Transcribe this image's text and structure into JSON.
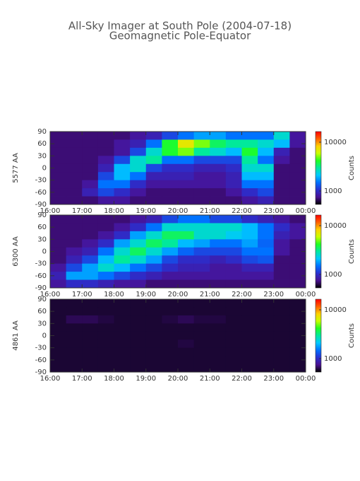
{
  "chart_data": [
    {
      "type": "heatmap",
      "title": "All-Sky Imager at South Pole (2004-07-18)",
      "subtitle": "Geomagnetic Pole-Equator",
      "ylabel": "5577 AA",
      "zlabel": "Counts",
      "zscale": "log",
      "zlim": [
        530,
        16500
      ],
      "zticks": [
        1000,
        10000
      ],
      "colormap": [
        "#000000",
        "#4a1090",
        "#2a30d0",
        "#0070ff",
        "#00c8ff",
        "#00e8a0",
        "#20ff20",
        "#c8ff00",
        "#ffd000",
        "#ff6000",
        "#ff0000"
      ],
      "xlim": [
        16,
        24
      ],
      "xticks": [
        {
          "value": 16,
          "label": "16:00"
        },
        {
          "value": 17,
          "label": "17:00"
        },
        {
          "value": 18,
          "label": "18:00"
        },
        {
          "value": 19,
          "label": "19:00"
        },
        {
          "value": 20,
          "label": "20:00"
        },
        {
          "value": 21,
          "label": "21:00"
        },
        {
          "value": 22,
          "label": "22:00"
        },
        {
          "value": 23,
          "label": "23:00"
        },
        {
          "value": 24,
          "label": "00:00"
        }
      ],
      "ylim": [
        -90,
        90
      ],
      "yticks": [
        -90,
        -60,
        -30,
        0,
        30,
        60,
        90
      ],
      "x": [
        16.25,
        16.75,
        17.25,
        17.75,
        18.25,
        18.75,
        19.25,
        19.75,
        20.25,
        20.75,
        21.25,
        21.75,
        22.25,
        22.75,
        23.25,
        23.75
      ],
      "y": [
        80,
        60,
        40,
        20,
        0,
        -20,
        -40,
        -60,
        -80
      ],
      "values": [
        [
          700,
          700,
          700,
          700,
          700,
          800,
          900,
          1200,
          1500,
          1800,
          1800,
          1500,
          1500,
          1500,
          2500,
          800
        ],
        [
          700,
          700,
          700,
          700,
          800,
          900,
          1500,
          4000,
          7000,
          5000,
          3500,
          3000,
          3000,
          2500,
          2000,
          800
        ],
        [
          700,
          700,
          700,
          700,
          800,
          1200,
          2500,
          4000,
          5000,
          3000,
          2500,
          2000,
          4000,
          2000,
          900,
          700
        ],
        [
          700,
          700,
          700,
          800,
          1200,
          2500,
          3000,
          1500,
          1500,
          1200,
          1200,
          1200,
          3000,
          1500,
          800,
          700
        ],
        [
          700,
          700,
          700,
          900,
          2000,
          2500,
          1200,
          1000,
          1000,
          900,
          900,
          1000,
          2500,
          2500,
          700,
          700
        ],
        [
          700,
          700,
          700,
          1200,
          2000,
          1500,
          900,
          900,
          900,
          800,
          800,
          900,
          2000,
          2000,
          700,
          700
        ],
        [
          700,
          700,
          800,
          1500,
          1500,
          1000,
          800,
          800,
          800,
          800,
          800,
          900,
          1500,
          1500,
          700,
          700
        ],
        [
          700,
          700,
          900,
          1200,
          1000,
          800,
          700,
          700,
          700,
          700,
          700,
          800,
          1000,
          1200,
          700,
          700
        ],
        [
          700,
          700,
          700,
          800,
          800,
          700,
          700,
          700,
          700,
          700,
          700,
          700,
          800,
          900,
          700,
          700
        ]
      ]
    },
    {
      "type": "heatmap",
      "ylabel": "6300 AA",
      "zlabel": "Counts",
      "zscale": "log",
      "zlim": [
        530,
        16500
      ],
      "zticks": [
        1000,
        10000
      ],
      "colormap": [
        "#000000",
        "#4a1090",
        "#2a30d0",
        "#0070ff",
        "#00c8ff",
        "#00e8a0",
        "#20ff20",
        "#c8ff00",
        "#ffd000",
        "#ff6000",
        "#ff0000"
      ],
      "xlim": [
        16,
        24
      ],
      "xticks": [
        {
          "value": 16,
          "label": "16:00"
        },
        {
          "value": 17,
          "label": "17:00"
        },
        {
          "value": 18,
          "label": "18:00"
        },
        {
          "value": 19,
          "label": "19:00"
        },
        {
          "value": 20,
          "label": "20:00"
        },
        {
          "value": 21,
          "label": "21:00"
        },
        {
          "value": 22,
          "label": "22:00"
        },
        {
          "value": 23,
          "label": "23:00"
        },
        {
          "value": 24,
          "label": "00:00"
        }
      ],
      "ylim": [
        -90,
        90
      ],
      "yticks": [
        -90,
        -60,
        -30,
        0,
        30,
        60,
        90
      ],
      "x": [
        16.25,
        16.75,
        17.25,
        17.75,
        18.25,
        18.75,
        19.25,
        19.75,
        20.25,
        20.75,
        21.25,
        21.75,
        22.25,
        22.75,
        23.25,
        23.75
      ],
      "y": [
        80,
        60,
        40,
        20,
        0,
        -20,
        -40,
        -60,
        -80
      ],
      "values": [
        [
          700,
          700,
          700,
          700,
          700,
          800,
          900,
          1200,
          1500,
          1500,
          1200,
          1200,
          1000,
          900,
          800,
          700
        ],
        [
          700,
          700,
          700,
          700,
          800,
          1000,
          1500,
          2500,
          2500,
          2500,
          2500,
          2500,
          2000,
          1500,
          1000,
          800
        ],
        [
          700,
          700,
          700,
          800,
          1000,
          1800,
          2500,
          3500,
          3500,
          2500,
          2500,
          2200,
          2000,
          1500,
          900,
          800
        ],
        [
          700,
          700,
          800,
          1000,
          1800,
          2500,
          3500,
          3000,
          2000,
          1800,
          1500,
          1500,
          1800,
          1400,
          800,
          700
        ],
        [
          700,
          800,
          900,
          1500,
          2500,
          3500,
          2500,
          1800,
          1400,
          1200,
          1200,
          1200,
          1500,
          1500,
          800,
          700
        ],
        [
          700,
          900,
          1200,
          2000,
          3000,
          2500,
          1800,
          1200,
          1000,
          1000,
          900,
          1000,
          1200,
          1300,
          700,
          700
        ],
        [
          800,
          1200,
          1800,
          2500,
          2000,
          1500,
          1200,
          1000,
          900,
          900,
          800,
          800,
          900,
          900,
          700,
          700
        ],
        [
          900,
          1800,
          1800,
          1500,
          1200,
          1000,
          900,
          800,
          800,
          800,
          800,
          800,
          800,
          800,
          700,
          700
        ],
        [
          800,
          1000,
          1000,
          900,
          800,
          800,
          700,
          700,
          700,
          700,
          700,
          700,
          700,
          700,
          700,
          700
        ]
      ]
    },
    {
      "type": "heatmap",
      "ylabel": "4861 AA",
      "zlabel": "Counts",
      "zscale": "log",
      "zlim": [
        530,
        16500
      ],
      "zticks": [
        1000,
        10000
      ],
      "colormap": [
        "#000000",
        "#4a1090",
        "#2a30d0",
        "#0070ff",
        "#00c8ff",
        "#00e8a0",
        "#20ff20",
        "#c8ff00",
        "#ffd000",
        "#ff6000",
        "#ff0000"
      ],
      "xlim": [
        16,
        24
      ],
      "xticks": [
        {
          "value": 16,
          "label": "16:00"
        },
        {
          "value": 17,
          "label": "17:00"
        },
        {
          "value": 18,
          "label": "18:00"
        },
        {
          "value": 19,
          "label": "19:00"
        },
        {
          "value": 20,
          "label": "20:00"
        },
        {
          "value": 21,
          "label": "21:00"
        },
        {
          "value": 22,
          "label": "22:00"
        },
        {
          "value": 23,
          "label": "23:00"
        },
        {
          "value": 24,
          "label": "00:00"
        }
      ],
      "ylim": [
        -90,
        90
      ],
      "yticks": [
        -90,
        -60,
        -30,
        0,
        30,
        60,
        90
      ],
      "x": [
        16.25,
        16.75,
        17.25,
        17.75,
        18.25,
        18.75,
        19.25,
        19.75,
        20.25,
        20.75,
        21.25,
        21.75,
        22.25,
        22.75,
        23.25,
        23.75
      ],
      "y": [
        80,
        60,
        40,
        20,
        0,
        -20,
        -40,
        -60,
        -80
      ],
      "values": [
        [
          600,
          600,
          600,
          600,
          600,
          600,
          600,
          600,
          600,
          600,
          600,
          600,
          600,
          600,
          600,
          600
        ],
        [
          600,
          600,
          600,
          600,
          600,
          600,
          600,
          600,
          600,
          600,
          600,
          600,
          600,
          600,
          600,
          600
        ],
        [
          600,
          650,
          650,
          620,
          600,
          600,
          600,
          620,
          650,
          620,
          620,
          600,
          600,
          600,
          600,
          600
        ],
        [
          600,
          600,
          600,
          600,
          600,
          600,
          600,
          600,
          600,
          600,
          600,
          600,
          600,
          600,
          600,
          600
        ],
        [
          600,
          600,
          600,
          600,
          600,
          600,
          600,
          600,
          600,
          600,
          600,
          600,
          600,
          600,
          600,
          600
        ],
        [
          600,
          600,
          600,
          600,
          600,
          600,
          600,
          600,
          620,
          600,
          600,
          600,
          600,
          600,
          600,
          600
        ],
        [
          600,
          600,
          600,
          600,
          600,
          600,
          600,
          600,
          600,
          600,
          600,
          600,
          600,
          600,
          600,
          600
        ],
        [
          600,
          600,
          600,
          600,
          600,
          600,
          600,
          600,
          600,
          600,
          600,
          600,
          600,
          600,
          600,
          600
        ],
        [
          600,
          600,
          600,
          600,
          600,
          600,
          600,
          600,
          600,
          600,
          600,
          600,
          600,
          600,
          600,
          600
        ]
      ]
    }
  ]
}
